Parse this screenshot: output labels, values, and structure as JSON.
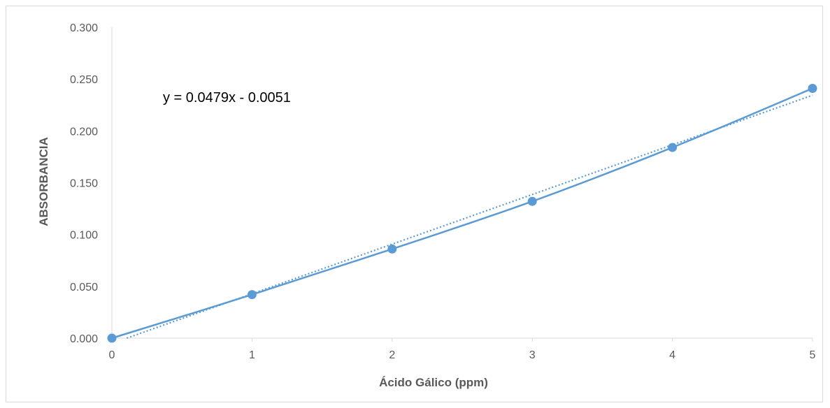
{
  "chart_data": {
    "type": "scatter",
    "x": [
      0,
      1,
      2,
      3,
      4,
      5
    ],
    "series": [
      {
        "values": [
          0.0,
          0.042,
          0.086,
          0.132,
          0.184,
          0.241
        ]
      }
    ],
    "trendline": {
      "type": "linear",
      "slope": 0.0479,
      "intercept": -0.0051,
      "style": "dotted"
    },
    "annotation": "y = 0.0479x - 0.0051",
    "xlabel": "Ácido Gálico (ppm)",
    "ylabel": "ABSORBANCIA",
    "xlim": [
      0,
      5
    ],
    "ylim": [
      0,
      0.3
    ],
    "xticks": [
      "0",
      "1",
      "2",
      "3",
      "4",
      "5"
    ],
    "yticks": [
      "0.000",
      "0.050",
      "0.100",
      "0.150",
      "0.200",
      "0.250",
      "0.300"
    ],
    "grid": false,
    "colors": {
      "series": "#5b9bd5",
      "axis": "#d9d9d9",
      "text": "#595959"
    }
  }
}
